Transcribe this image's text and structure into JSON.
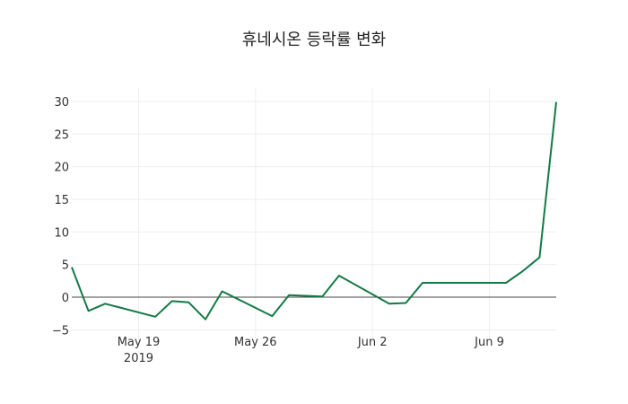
{
  "chart_data": {
    "type": "line",
    "title": "휴네시온 등락률 변화",
    "xlabel": "",
    "ylabel": "",
    "ylim": [
      -5,
      30
    ],
    "grid": true,
    "y_ticks": [
      "30",
      "25",
      "20",
      "15",
      "10",
      "5",
      "0",
      "−5"
    ],
    "y_tick_values": [
      30,
      25,
      20,
      15,
      10,
      5,
      0,
      -5
    ],
    "x_ticks": [
      {
        "date": "2019-05-19",
        "label": "May 19",
        "sublabel": "2019"
      },
      {
        "date": "2019-05-26",
        "label": "May 26",
        "sublabel": ""
      },
      {
        "date": "2019-06-02",
        "label": "Jun 2",
        "sublabel": ""
      },
      {
        "date": "2019-06-09",
        "label": "Jun 9",
        "sublabel": ""
      }
    ],
    "x_range": [
      "2019-05-15",
      "2019-06-13"
    ],
    "line_color": "#137a45",
    "series": [
      {
        "name": "등락률",
        "x": [
          "2019-05-15",
          "2019-05-16",
          "2019-05-17",
          "2019-05-20",
          "2019-05-21",
          "2019-05-22",
          "2019-05-23",
          "2019-05-24",
          "2019-05-27",
          "2019-05-28",
          "2019-05-30",
          "2019-05-31",
          "2019-06-03",
          "2019-06-04",
          "2019-06-05",
          "2019-06-07",
          "2019-06-10",
          "2019-06-11",
          "2019-06-12",
          "2019-06-13"
        ],
        "values": [
          4.6,
          -2.1,
          -1.0,
          -3.0,
          -0.6,
          -0.8,
          -3.4,
          0.9,
          -2.9,
          0.3,
          0.1,
          3.3,
          -1.0,
          -0.9,
          2.2,
          2.2,
          2.2,
          4.0,
          6.1,
          29.9
        ]
      }
    ]
  }
}
